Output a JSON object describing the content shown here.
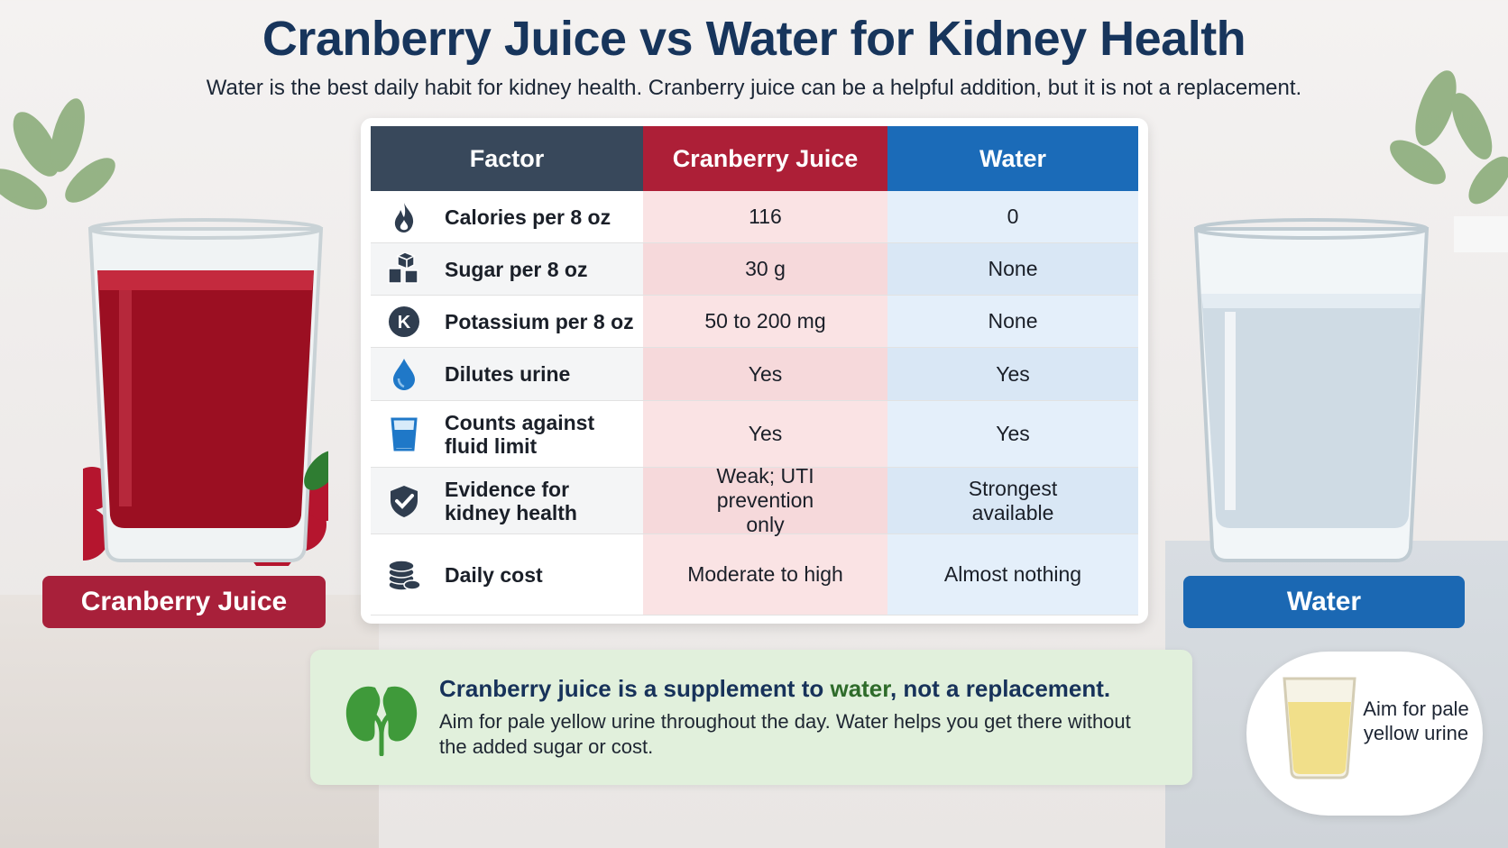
{
  "title": "Cranberry Juice vs Water for Kidney Health",
  "subtitle": "Water is the best daily habit for kidney health. Cranberry juice can be a helpful addition, but it is not a replacement.",
  "labels": {
    "juice": "Cranberry Juice",
    "water": "Water"
  },
  "table": {
    "headers": {
      "factor": "Factor",
      "juice": "Cranberry Juice",
      "water": "Water"
    },
    "rows": [
      {
        "icon": "flame-icon",
        "factor": "Calories per 8 oz",
        "juice": "116",
        "water": "0"
      },
      {
        "icon": "sugar-cubes-icon",
        "factor": "Sugar per 8 oz",
        "juice": "30 g",
        "water": "None"
      },
      {
        "icon": "potassium-k-icon",
        "factor": "Potassium per 8 oz",
        "juice": "50 to 200 mg",
        "water": "None"
      },
      {
        "icon": "water-drop-icon",
        "factor": "Dilutes urine",
        "juice": "Yes",
        "water": "Yes"
      },
      {
        "icon": "cup-icon",
        "factor": "Counts against fluid limit",
        "juice": "Yes",
        "water": "Yes"
      },
      {
        "icon": "shield-check-icon",
        "factor": "Evidence for kidney health",
        "juice": "Weak; UTI prevention only",
        "water": "Strongest available"
      },
      {
        "icon": "coins-icon",
        "factor": "Daily cost",
        "juice": "Moderate to high",
        "water": "Almost nothing"
      }
    ]
  },
  "note": {
    "icon": "kidney-icon",
    "title_start": "Cranberry juice is a supplement to ",
    "title_accent": "water",
    "title_end": ", not a replacement.",
    "body": "Aim for pale yellow urine throughout the day. Water helps you get there without the added sugar or cost."
  },
  "aside": {
    "icon": "pale-yellow-glass-icon",
    "text": "Aim for pale yellow urine"
  },
  "colors": {
    "juice": "#ad1f37",
    "water": "#1b6bb8",
    "header_dark": "#38485b",
    "note_bg": "#e1f0dc",
    "accent_green": "#2e6b2a"
  }
}
